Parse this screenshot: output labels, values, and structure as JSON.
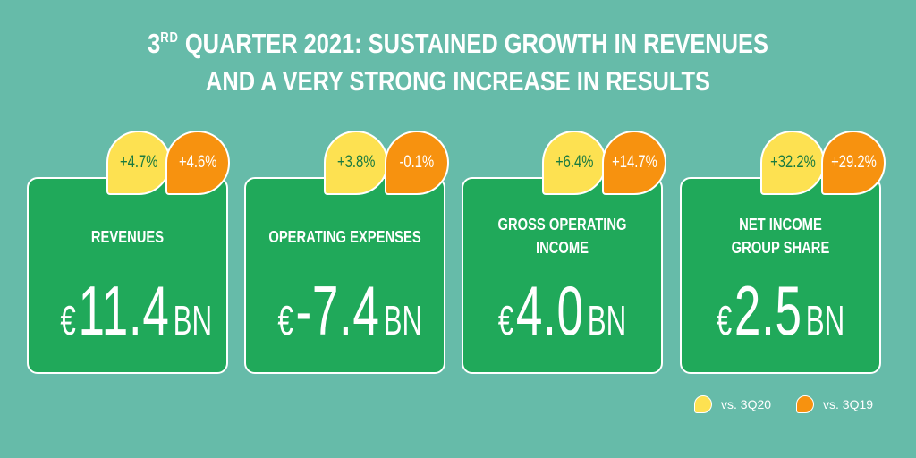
{
  "title": {
    "line1_prefix": "3",
    "line1_sup": "RD",
    "line1_rest": " QUARTER 2021: SUSTAINED GROWTH IN REVENUES",
    "line2": "AND A VERY STRONG INCREASE IN RESULTS"
  },
  "cards": [
    {
      "label_line1": "REVENUES",
      "label_line2": "",
      "currency": "€",
      "value": "11.4",
      "unit": "BN",
      "vs_3q20": "+4.7%",
      "vs_3q19": "+4.6%"
    },
    {
      "label_line1": "OPERATING EXPENSES",
      "label_line2": "",
      "currency": "€",
      "value": "-7.4",
      "unit": "BN",
      "vs_3q20": "+3.8%",
      "vs_3q19": "-0.1%"
    },
    {
      "label_line1": "GROSS OPERATING",
      "label_line2": "INCOME",
      "currency": "€",
      "value": "4.0",
      "unit": "BN",
      "vs_3q20": "+6.4%",
      "vs_3q19": "+14.7%"
    },
    {
      "label_line1": "NET INCOME",
      "label_line2": "GROUP SHARE",
      "currency": "€",
      "value": "2.5",
      "unit": "BN",
      "vs_3q20": "+32.2%",
      "vs_3q19": "+29.2%"
    }
  ],
  "legend": {
    "yellow_label": "vs. 3Q20",
    "orange_label": "vs. 3Q19"
  },
  "colors": {
    "background": "#66bba9",
    "card": "#20a95a",
    "yellow": "#fde151",
    "orange": "#f7920f"
  }
}
